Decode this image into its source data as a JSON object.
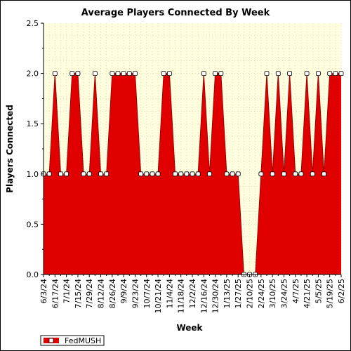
{
  "chart_data": {
    "type": "area",
    "title": "Average Players Connected By Week",
    "xlabel": "Week",
    "ylabel": "Players Connected",
    "ylim": [
      0,
      2.5
    ],
    "yticks": [
      "0.0",
      "0.5",
      "1.0",
      "1.5",
      "2.0",
      "2.5"
    ],
    "grid": true,
    "legend_position": "bottom-left",
    "colors": {
      "series": "#e00000",
      "plot_background": "#ffffe0",
      "marker_fill": "#ffffff"
    },
    "x_tick_labels": [
      "6/3/24",
      "6/17/24",
      "7/1/24",
      "7/15/24",
      "7/29/24",
      "8/12/24",
      "8/26/24",
      "9/9/24",
      "9/23/24",
      "10/7/24",
      "10/21/24",
      "11/4/24",
      "11/18/24",
      "12/2/24",
      "12/16/24",
      "12/30/24",
      "1/13/25",
      "1/27/25",
      "2/10/25",
      "2/24/25",
      "3/10/25",
      "3/24/25",
      "4/7/25",
      "4/21/25",
      "5/5/25",
      "5/19/25",
      "6/2/25"
    ],
    "series": [
      {
        "name": "FedMUSH",
        "values": [
          1,
          1,
          2,
          1,
          1,
          2,
          2,
          1,
          1,
          2,
          1,
          1,
          2,
          2,
          2,
          2,
          2,
          1,
          1,
          1,
          1,
          2,
          2,
          1,
          1,
          1,
          1,
          1,
          2,
          1,
          2,
          2,
          1,
          1,
          1,
          0,
          0,
          0,
          1,
          2,
          1,
          2,
          1,
          2,
          1,
          1,
          2,
          1,
          2,
          1,
          2,
          2,
          2
        ]
      }
    ]
  }
}
